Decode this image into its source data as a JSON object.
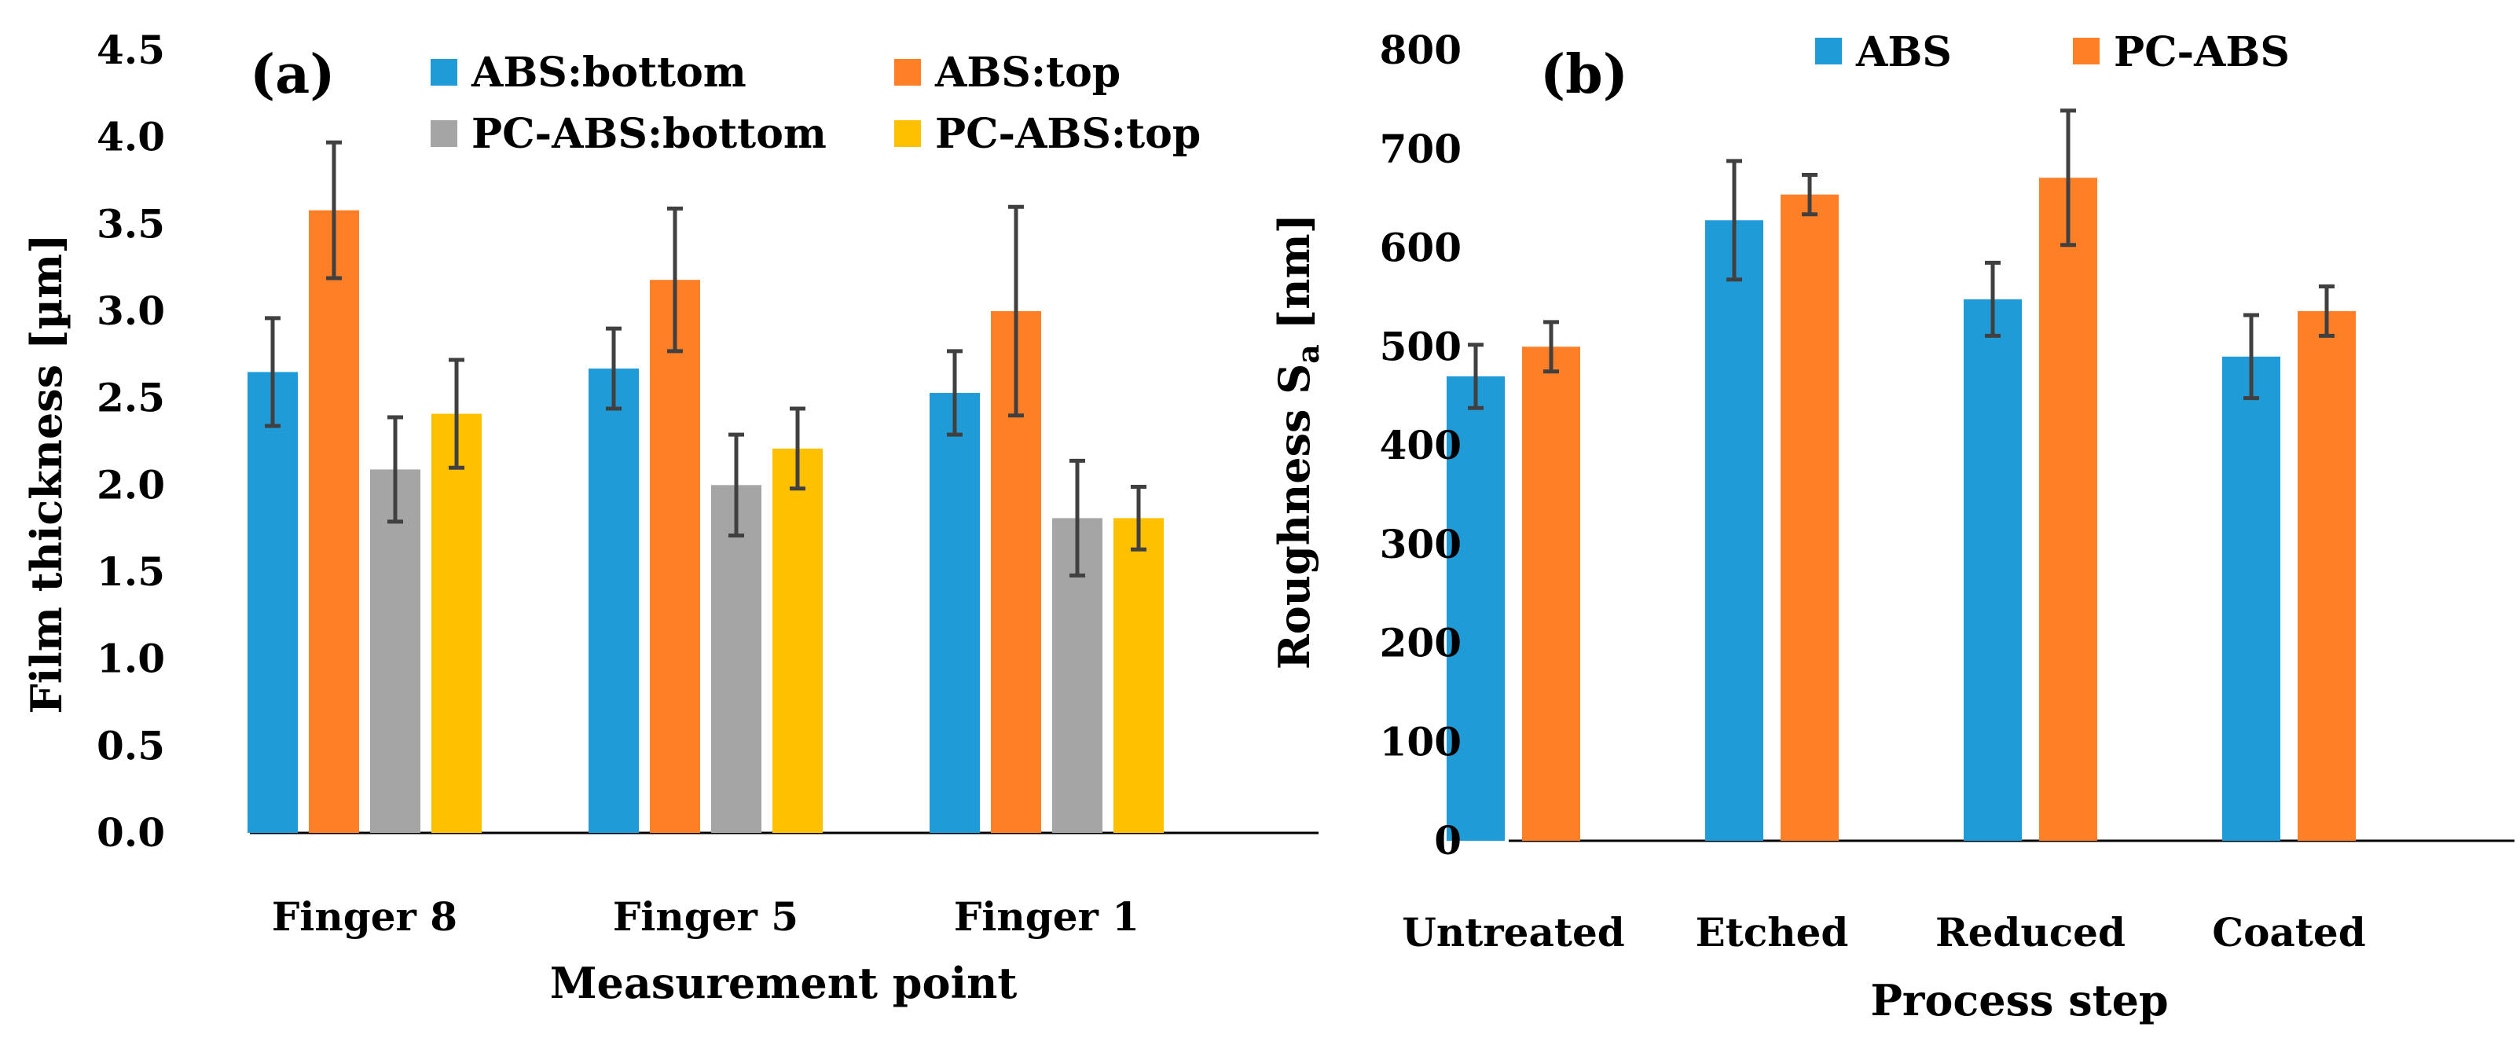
{
  "colors": {
    "abs_bottom": "#1F9BD7",
    "abs_top": "#FF7F27",
    "pcabs_bottom": "#A5A5A5",
    "pcabs_top": "#FFC000",
    "error_bar": "#404040",
    "axis": "#000000"
  },
  "chart_data": [
    {
      "type": "bar",
      "panel_label": "(a)",
      "xlabel": "Measurement point",
      "ylabel": "Film thickness [µm]",
      "ylim": [
        0,
        4.5
      ],
      "ytick_step": 0.5,
      "ytick_labels": [
        "0.0",
        "0.5",
        "1.0",
        "1.5",
        "2.0",
        "2.5",
        "3.0",
        "3.5",
        "4.0",
        "4.5"
      ],
      "grid": false,
      "legend_position": "top",
      "categories": [
        "Finger 8",
        "Finger 5",
        "Finger 1"
      ],
      "series": [
        {
          "name": "ABS:bottom",
          "color_key": "abs_bottom",
          "values": [
            2.65,
            2.67,
            2.53
          ],
          "errors": [
            0.31,
            0.23,
            0.24
          ]
        },
        {
          "name": "ABS:top",
          "color_key": "abs_top",
          "values": [
            3.58,
            3.18,
            3.0
          ],
          "errors": [
            0.39,
            0.41,
            0.6
          ]
        },
        {
          "name": "PC-ABS:bottom",
          "color_key": "pcabs_bottom",
          "values": [
            2.09,
            2.0,
            1.81
          ],
          "errors": [
            0.3,
            0.29,
            0.33
          ]
        },
        {
          "name": "PC-ABS:top",
          "color_key": "pcabs_top",
          "values": [
            2.41,
            2.21,
            1.81
          ],
          "errors": [
            0.31,
            0.23,
            0.18
          ]
        }
      ]
    },
    {
      "type": "bar",
      "panel_label": "(b)",
      "xlabel": "Process step",
      "ylabel_main": "Roughness S",
      "ylabel_sub": "a",
      "ylabel_unit": " [nm]",
      "ylim": [
        0,
        800
      ],
      "ytick_step": 100,
      "ytick_labels": [
        "0",
        "100",
        "200",
        "300",
        "400",
        "500",
        "600",
        "700",
        "800"
      ],
      "grid": false,
      "legend_position": "top",
      "categories": [
        "Untreated",
        "Etched",
        "Reduced",
        "Coated"
      ],
      "series": [
        {
          "name": "ABS",
          "color_key": "abs_bottom",
          "values": [
            470,
            628,
            548,
            490
          ],
          "errors": [
            32,
            60,
            37,
            42
          ]
        },
        {
          "name": "PC-ABS",
          "color_key": "abs_top",
          "values": [
            500,
            654,
            671,
            536
          ],
          "errors": [
            25,
            20,
            68,
            25
          ]
        }
      ]
    }
  ]
}
